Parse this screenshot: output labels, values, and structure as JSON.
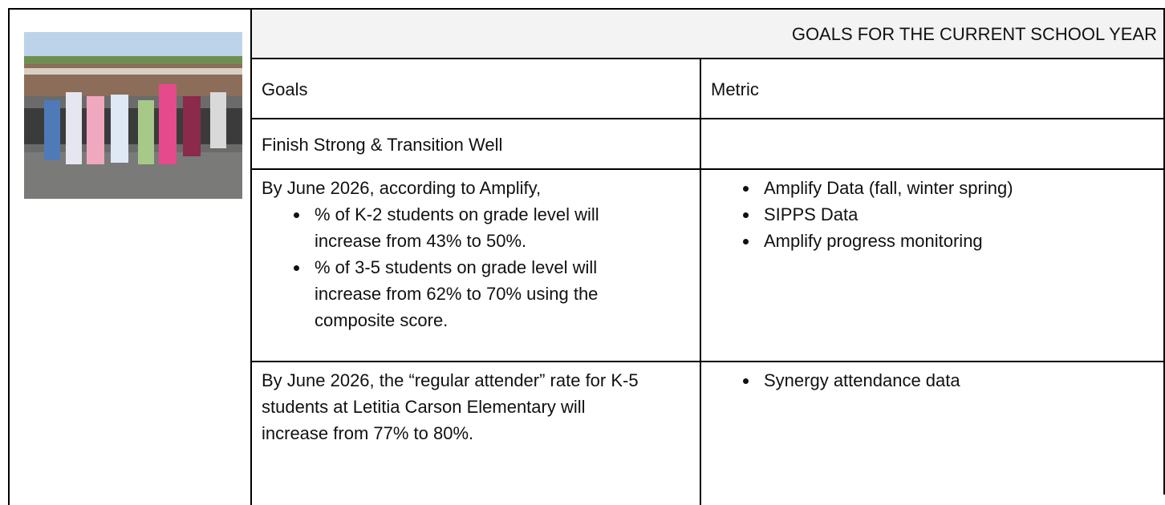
{
  "header": {
    "title": "GOALS FOR THE CURRENT SCHOOL YEAR"
  },
  "table": {
    "columns": [
      "Goals",
      "Metric"
    ],
    "rows": [
      {
        "goal": {
          "text": "Finish Strong & Transition Well"
        }
      },
      {
        "goal": {
          "text": "By June 2026, according to Amplify,",
          "bullets": [
            "% of K-2 students on grade level will increase from 43% to 50%.",
            "% of 3-5 students on grade level will increase from 62% to 70% using the composite score."
          ]
        },
        "metric": {
          "bullets": [
            "Amplify Data (fall, winter spring)",
            "SIPPS Data",
            "Amplify progress monitoring"
          ]
        }
      },
      {
        "goal": {
          "text": "By June 2026, the “regular attender” rate for K-5 students at Letitia Carson Elementary will increase from 77% to 80%."
        },
        "metric": {
          "bullets": [
            "Synergy attendance data"
          ]
        }
      }
    ]
  }
}
